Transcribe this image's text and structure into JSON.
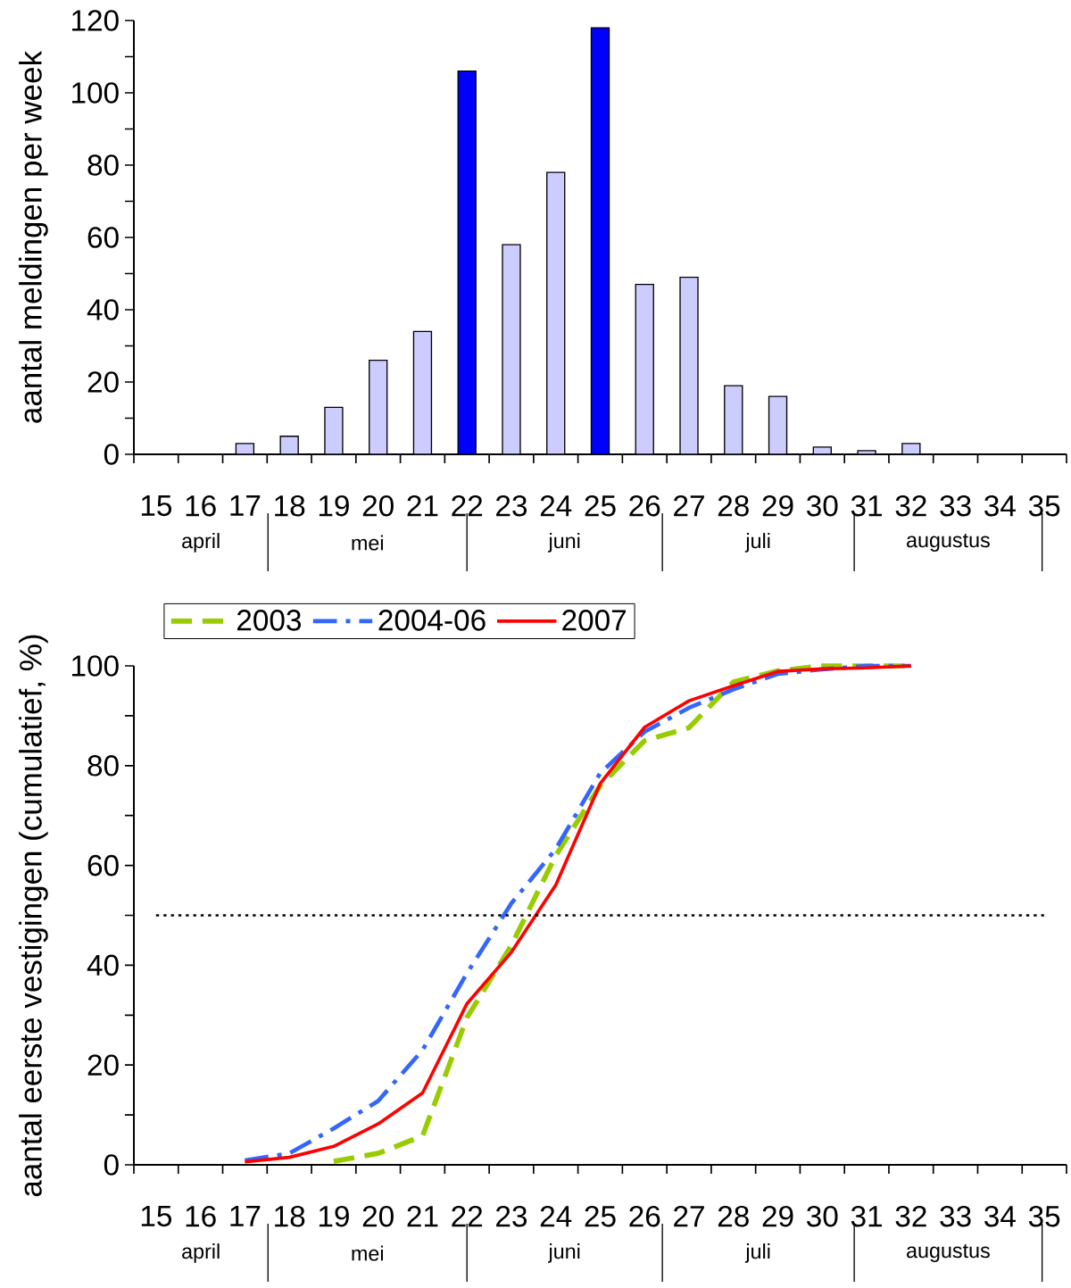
{
  "chart_data": [
    {
      "type": "bar",
      "ylabel": "aantal meldingen per week",
      "categories": [
        "15",
        "16",
        "17",
        "18",
        "19",
        "20",
        "21",
        "22",
        "23",
        "24",
        "25",
        "26",
        "27",
        "28",
        "29",
        "30",
        "31",
        "32",
        "33",
        "34",
        "35"
      ],
      "values": [
        0,
        0,
        3,
        5,
        13,
        26,
        34,
        106,
        58,
        78,
        118,
        47,
        49,
        19,
        16,
        2,
        1,
        3,
        0,
        0,
        0
      ],
      "colors": [
        "#ccccff",
        "#ccccff",
        "#ccccff",
        "#ccccff",
        "#ccccff",
        "#ccccff",
        "#ccccff",
        "#0000ff",
        "#ccccff",
        "#ccccff",
        "#0000ff",
        "#ccccff",
        "#ccccff",
        "#ccccff",
        "#ccccff",
        "#ccccff",
        "#ccccff",
        "#ccccff",
        "#ccccff",
        "#ccccff",
        "#ccccff"
      ],
      "ylim": [
        0,
        120
      ],
      "yticks": [
        0,
        20,
        40,
        60,
        80,
        100,
        120
      ],
      "annotations": [
        "april",
        "mei",
        "juni",
        "juli",
        "augustus"
      ]
    },
    {
      "type": "line",
      "ylabel": "aantal eerste vestigingen (cumulatief, %)",
      "categories": [
        "15",
        "16",
        "17",
        "18",
        "19",
        "20",
        "21",
        "22",
        "23",
        "24",
        "25",
        "26",
        "27",
        "28",
        "29",
        "30",
        "31",
        "32",
        "33",
        "34",
        "35"
      ],
      "series": [
        {
          "name": "2003",
          "color": "#99cc00",
          "line_style": "dashed",
          "values": [
            null,
            null,
            null,
            null,
            0.7,
            2.3,
            5.8,
            29.5,
            44,
            62,
            76,
            85,
            87.6,
            96.8,
            99,
            100,
            100,
            100,
            null,
            null,
            null
          ]
        },
        {
          "name": "2004-06",
          "color": "#3366ff",
          "line_style": "dashdot",
          "values": [
            null,
            null,
            0.9,
            2.3,
            7.3,
            12.8,
            23,
            38.4,
            52.4,
            63.3,
            78.5,
            86.8,
            91.6,
            95.3,
            98.4,
            99.3,
            100,
            100,
            null,
            null,
            null
          ]
        },
        {
          "name": "2007",
          "color": "#ff0000",
          "line_style": "solid",
          "values": [
            null,
            null,
            0.6,
            1.5,
            3.7,
            8.2,
            14.4,
            32.3,
            42.6,
            56.1,
            76.4,
            87.7,
            93,
            96,
            98.9,
            99.4,
            99.6,
            100,
            null,
            null,
            null
          ]
        }
      ],
      "ylim": [
        0,
        100
      ],
      "yticks": [
        0,
        20,
        40,
        60,
        80,
        100
      ],
      "ref_lines": [
        {
          "axis": "y",
          "value": 50,
          "line_style": "dotted",
          "color": "#000000"
        }
      ],
      "legend": "top",
      "annotations": [
        "april",
        "mei",
        "juni",
        "juli",
        "augustus"
      ]
    }
  ]
}
